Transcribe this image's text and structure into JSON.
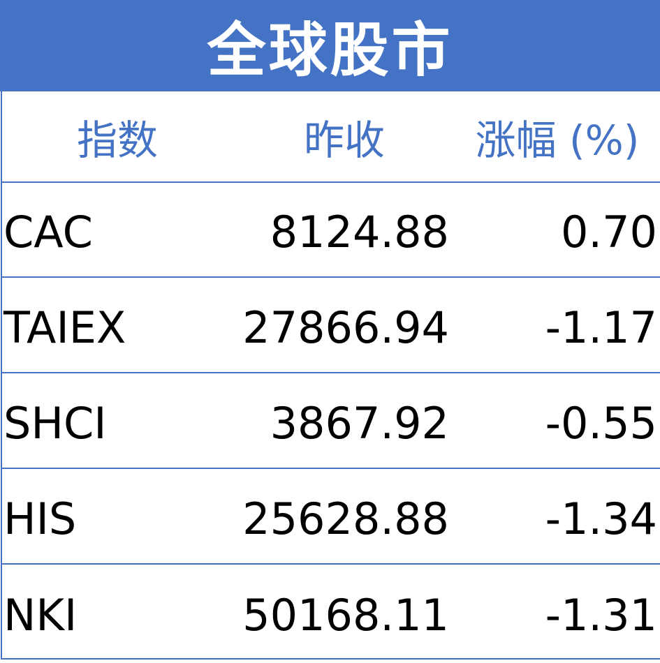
{
  "title": "全球股市",
  "colors": {
    "accent": "#4472C4",
    "header_text": "#4472C4",
    "body_text": "#000000"
  },
  "columns": [
    "指数",
    "昨收",
    "涨幅 (%)"
  ],
  "rows": [
    {
      "index": "CAC",
      "close": "8124.88",
      "change": "0.70"
    },
    {
      "index": "TAIEX",
      "close": "27866.94",
      "change": "-1.17"
    },
    {
      "index": "SHCI",
      "close": "3867.92",
      "change": "-0.55"
    },
    {
      "index": "HIS",
      "close": "25628.88",
      "change": "-1.34"
    },
    {
      "index": "NKI",
      "close": "50168.11",
      "change": "-1.31"
    }
  ]
}
